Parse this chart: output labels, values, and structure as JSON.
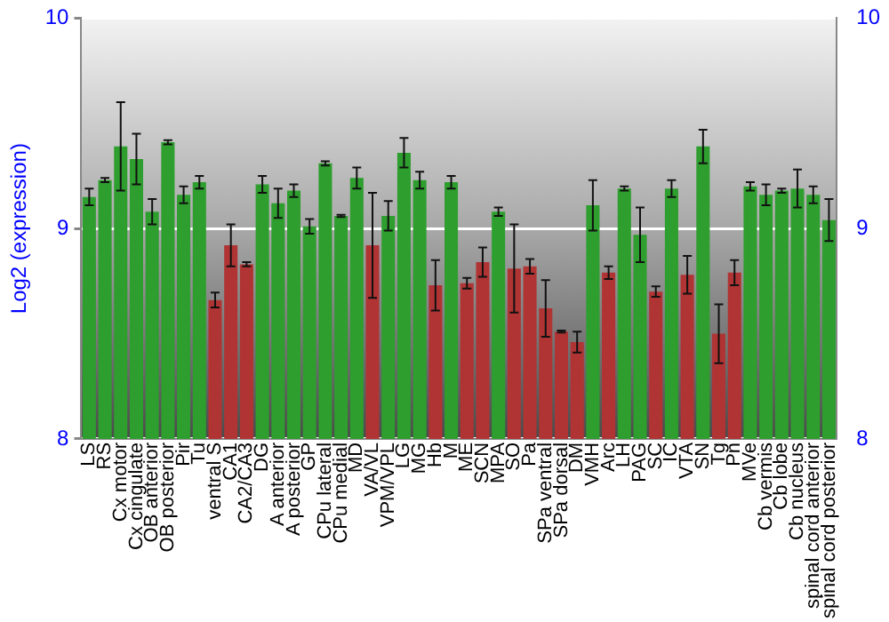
{
  "chart_data": {
    "type": "bar",
    "ylabel": "Log2 (expression)",
    "categories": [
      "LS",
      "RS",
      "Cx motor",
      "Cx cingulate",
      "OB anterior",
      "OB posterior",
      "Pir",
      "Tu",
      "ventral S",
      "CA1",
      "CA2/CA3",
      "DG",
      "A anterior",
      "A posterior",
      "GP",
      "CPu lateral",
      "CPu medial",
      "MD",
      "VA/VL",
      "VPM/VPL",
      "LG",
      "MG",
      "Hb",
      "M",
      "ME",
      "SCN",
      "MPA",
      "SO",
      "Pa",
      "SPa ventral",
      "SPa dorsal",
      "DM",
      "VMH",
      "Arc",
      "LH",
      "PAG",
      "SC",
      "IC",
      "VTA",
      "SN",
      "Tg",
      "Pn",
      "MVe",
      "Cb vermis",
      "Cb lobe",
      "Cb nucleus",
      "spinal cord anterior",
      "spinal cord posterior"
    ],
    "values": [
      9.15,
      9.23,
      9.39,
      9.33,
      9.08,
      9.41,
      9.16,
      9.22,
      8.66,
      8.92,
      8.83,
      9.21,
      9.12,
      9.18,
      9.01,
      9.31,
      9.06,
      9.24,
      8.92,
      9.06,
      9.36,
      9.23,
      8.73,
      9.22,
      8.74,
      8.84,
      9.08,
      8.81,
      8.82,
      8.62,
      8.51,
      8.46,
      9.11,
      8.79,
      9.19,
      8.97,
      8.7,
      9.19,
      8.78,
      9.39,
      8.5,
      8.79,
      9.2,
      9.16,
      9.18,
      9.19,
      9.16,
      9.04
    ],
    "errors": [
      0.04,
      0.01,
      0.21,
      0.12,
      0.06,
      0.01,
      0.04,
      0.03,
      0.035,
      0.1,
      0.01,
      0.04,
      0.07,
      0.03,
      0.035,
      0.01,
      0.005,
      0.05,
      0.25,
      0.07,
      0.07,
      0.04,
      0.12,
      0.03,
      0.025,
      0.07,
      0.02,
      0.21,
      0.035,
      0.135,
      0.005,
      0.05,
      0.12,
      0.03,
      0.01,
      0.13,
      0.025,
      0.04,
      0.09,
      0.08,
      0.14,
      0.06,
      0.02,
      0.05,
      0.01,
      0.09,
      0.04,
      0.1
    ],
    "colors": [
      "#2e9e2e",
      "#2e9e2e",
      "#2e9e2e",
      "#2e9e2e",
      "#2e9e2e",
      "#2e9e2e",
      "#2e9e2e",
      "#2e9e2e",
      "#b03434",
      "#b03434",
      "#b03434",
      "#2e9e2e",
      "#2e9e2e",
      "#2e9e2e",
      "#2e9e2e",
      "#2e9e2e",
      "#2e9e2e",
      "#2e9e2e",
      "#b03434",
      "#2e9e2e",
      "#2e9e2e",
      "#2e9e2e",
      "#b03434",
      "#2e9e2e",
      "#b03434",
      "#b03434",
      "#2e9e2e",
      "#b03434",
      "#b03434",
      "#b03434",
      "#b03434",
      "#b03434",
      "#2e9e2e",
      "#b03434",
      "#2e9e2e",
      "#2e9e2e",
      "#b03434",
      "#2e9e2e",
      "#b03434",
      "#2e9e2e",
      "#b03434",
      "#b03434",
      "#2e9e2e",
      "#2e9e2e",
      "#2e9e2e",
      "#2e9e2e",
      "#2e9e2e",
      "#2e9e2e"
    ],
    "ylim": [
      8,
      10
    ],
    "yticks": [
      8,
      9,
      10
    ],
    "y2lim": [
      8,
      10
    ],
    "y2ticks": [
      8,
      9,
      10
    ],
    "grid": "y",
    "legend": false
  }
}
